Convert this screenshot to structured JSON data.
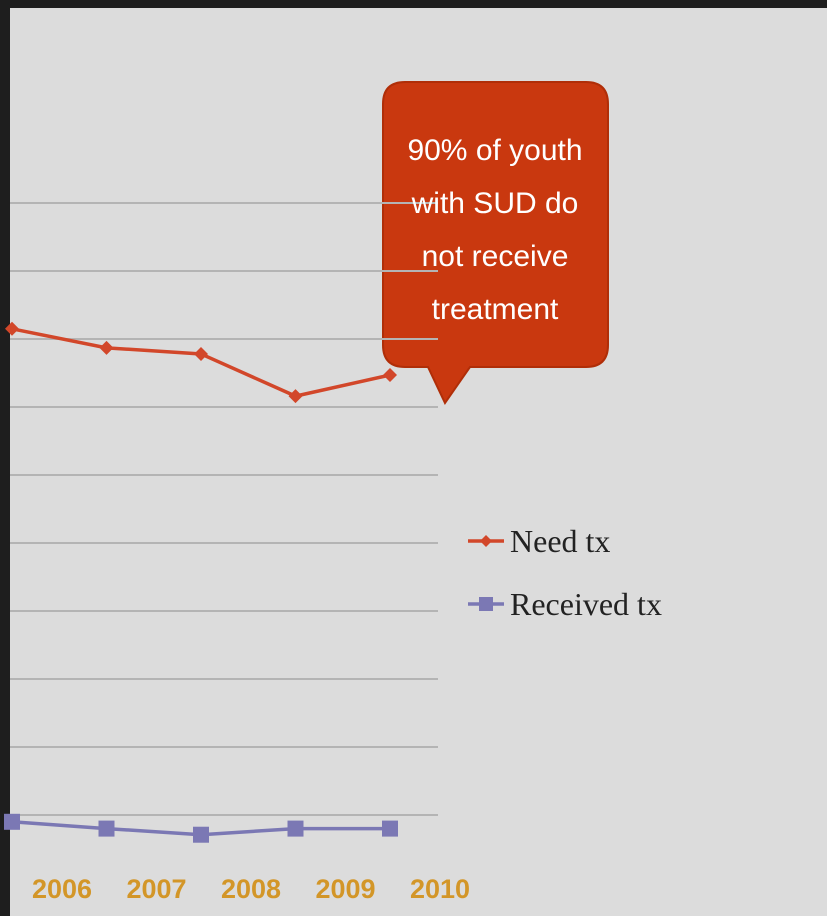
{
  "chart_data": {
    "type": "line",
    "annotation": [
      "90% of youth",
      "with SUD do",
      "not receive",
      "treatment"
    ],
    "categories": [
      "2006",
      "2007",
      "2008",
      "2009",
      "2010"
    ],
    "series": [
      {
        "name": "Need tx",
        "color": "#d2472a",
        "marker": "diamond",
        "values": [
          7.15,
          6.87,
          6.78,
          6.16,
          6.47
        ]
      },
      {
        "name": "Received tx",
        "color": "#7b78b4",
        "marker": "square",
        "values": [
          -0.1,
          -0.2,
          -0.29,
          -0.2,
          -0.2
        ]
      }
    ],
    "ylim": [
      -0.5,
      10
    ],
    "yticks": [
      0,
      1,
      2,
      3,
      4,
      5,
      6,
      7,
      8,
      9
    ],
    "grid": true
  }
}
